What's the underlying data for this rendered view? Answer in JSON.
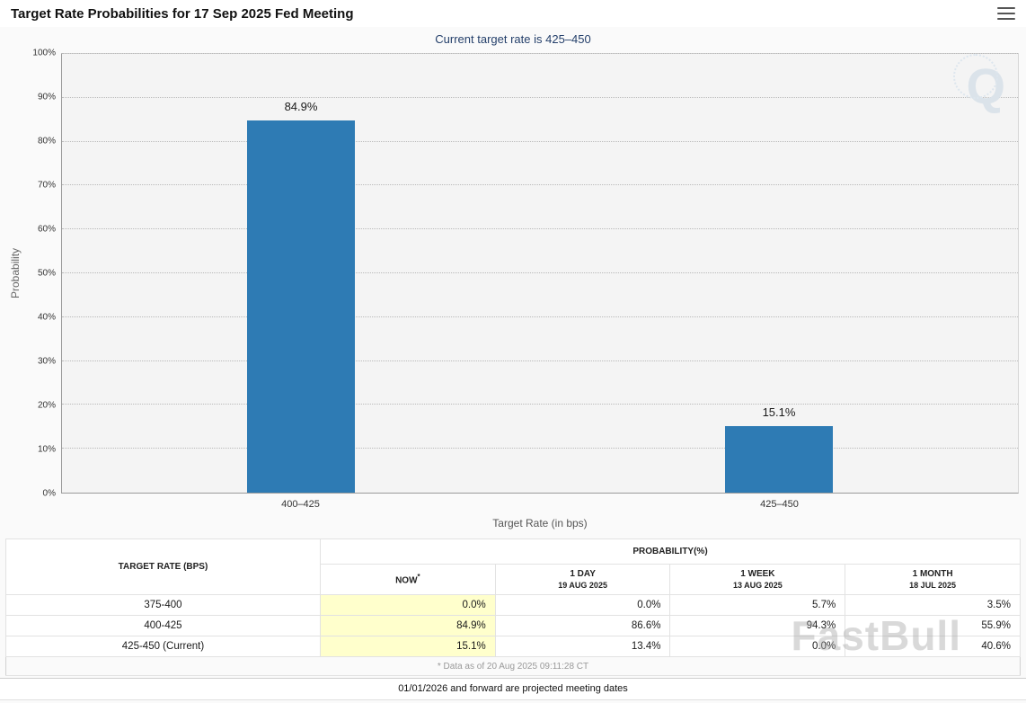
{
  "header": {
    "title": "Target Rate Probabilities for 17 Sep 2025 Fed Meeting"
  },
  "watermarks": {
    "logo": "Q",
    "brand": "FastBull"
  },
  "chart_data": {
    "type": "bar",
    "title": "Target Rate Probabilities for 17 Sep 2025 Fed Meeting",
    "subtitle": "Current target rate is 425–450",
    "categories": [
      "400–425",
      "425–450"
    ],
    "values": [
      84.9,
      15.1
    ],
    "value_labels": [
      "84.9%",
      "15.1%"
    ],
    "xlabel": "Target Rate (in bps)",
    "ylabel": "Probability",
    "ylim": [
      0,
      100
    ],
    "ytick_step": 10,
    "ytick_suffix": "%",
    "grid": "horizontal-dotted",
    "legend": "none",
    "bar_color": "#2e7bb4"
  },
  "table": {
    "rate_header": "TARGET RATE (BPS)",
    "col_group_header": "PROBABILITY(%)",
    "columns": [
      {
        "label": "NOW",
        "sup": "*",
        "sub": ""
      },
      {
        "label": "1 DAY",
        "sub": "19 AUG 2025"
      },
      {
        "label": "1 WEEK",
        "sub": "13 AUG 2025"
      },
      {
        "label": "1 MONTH",
        "sub": "18 JUL 2025"
      }
    ],
    "rows": [
      {
        "rate": "375-400",
        "values": [
          "0.0%",
          "0.0%",
          "5.7%",
          "3.5%"
        ]
      },
      {
        "rate": "400-425",
        "values": [
          "84.9%",
          "86.6%",
          "94.3%",
          "55.9%"
        ]
      },
      {
        "rate": "425-450 (Current)",
        "values": [
          "15.1%",
          "13.4%",
          "0.0%",
          "40.6%"
        ]
      }
    ],
    "footnote": "* Data as of 20 Aug 2025 09:11:28 CT"
  },
  "footer_note": "01/01/2026 and forward are projected meeting dates",
  "colors": {
    "bar_blue": "#2e7bb4",
    "subtitle_navy": "#25406b",
    "now_column_highlight": "#ffffcc"
  }
}
